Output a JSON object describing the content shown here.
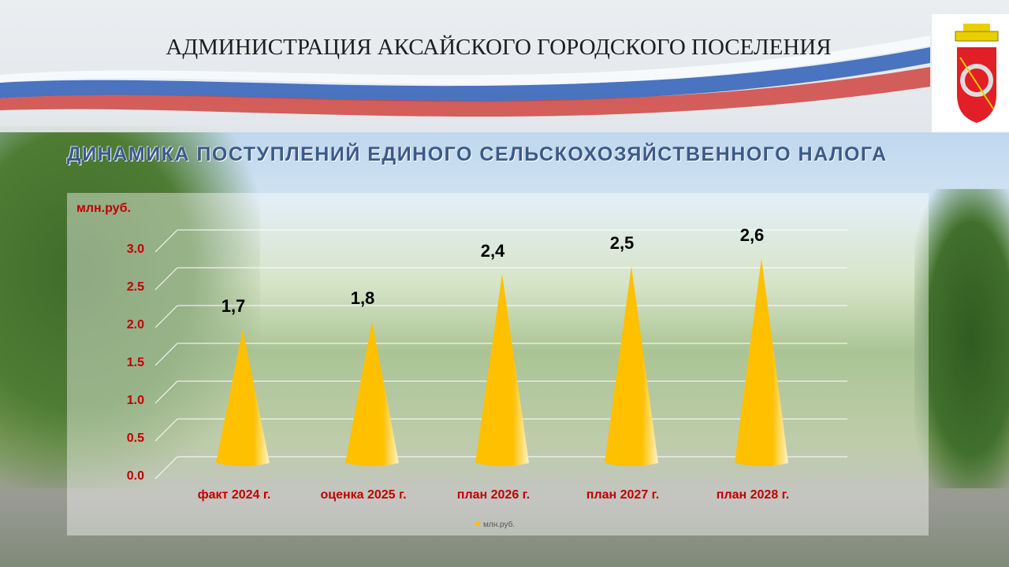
{
  "header": {
    "title": "АДМИНИСТРАЦИЯ АКСАЙСКОГО ГОРОДСКОГО ПОСЕЛЕНИЯ"
  },
  "slide": {
    "subtitle": "ДИНАМИКА ПОСТУПЛЕНИЙ ЕДИНОГО СЕЛЬСКОХОЗЯЙСТВЕННОГО НАЛОГА"
  },
  "chart_data": {
    "type": "bar",
    "bar_shape": "cone",
    "ylabel": "млн.руб.",
    "ylim": [
      0,
      3.0
    ],
    "yticks": [
      "0.0",
      "0.5",
      "1.0",
      "1.5",
      "2.0",
      "2.5",
      "3.0"
    ],
    "categories": [
      "факт 2024 г.",
      "оценка 2025 г.",
      "план 2026 г.",
      "план 2027 г.",
      "план 2028 г."
    ],
    "series": [
      {
        "name": "млн.руб.",
        "values": [
          1.7,
          1.8,
          2.4,
          2.5,
          2.6
        ],
        "labels": [
          "1,7",
          "1,8",
          "2,4",
          "2,5",
          "2,6"
        ]
      }
    ],
    "grid": true,
    "legend": "bottom",
    "colors": {
      "bar": "#ffc000",
      "tick": "#c00000",
      "subtitle": "#3a5a8a"
    }
  }
}
